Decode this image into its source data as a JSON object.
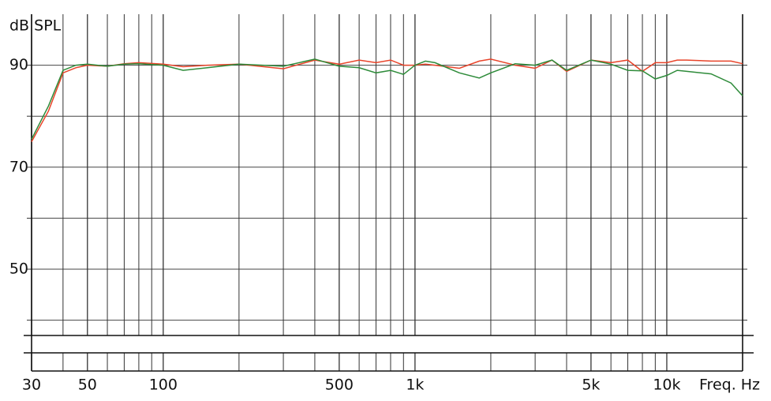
{
  "chart_data": {
    "type": "line",
    "y_label": "dB SPL",
    "x_label": "Freq. Hz",
    "x": [
      30,
      35,
      40,
      45,
      50,
      60,
      70,
      80,
      100,
      120,
      150,
      200,
      300,
      400,
      500,
      600,
      700,
      800,
      900,
      1000,
      1100,
      1200,
      1500,
      1800,
      2000,
      2500,
      3000,
      3500,
      4000,
      5000,
      6000,
      7000,
      8000,
      9000,
      10000,
      11000,
      12000,
      15000,
      18000,
      20000
    ],
    "series": [
      {
        "color": "#e8442a",
        "values": [
          75,
          81,
          88.5,
          89.5,
          90,
          89.8,
          90.3,
          90.5,
          90.2,
          89.7,
          90,
          90.2,
          89.3,
          91,
          90.2,
          91,
          90.5,
          91,
          90,
          90,
          90.2,
          90,
          89.4,
          90.8,
          91.2,
          90,
          89.4,
          91,
          88.8,
          91,
          90.5,
          91,
          88.8,
          90.5,
          90.5,
          91,
          91,
          90.8,
          90.8,
          90.3
        ]
      },
      {
        "color": "#2e8b3a",
        "values": [
          75.5,
          82,
          89,
          90,
          90.2,
          89.8,
          90.2,
          90.3,
          90,
          89,
          89.5,
          90.2,
          89.8,
          91.2,
          89.8,
          89.5,
          88.5,
          89,
          88.2,
          90,
          90.8,
          90.5,
          88.5,
          87.5,
          88.5,
          90.3,
          90,
          91,
          89,
          91,
          90.2,
          89,
          88.9,
          87.3,
          88,
          89,
          88.8,
          88.3,
          86.5,
          84
        ]
      }
    ],
    "xscale": "log",
    "xlim": [
      30,
      20000
    ],
    "xticks": [
      30,
      50,
      100,
      500,
      {
        "value": 1000,
        "label": "1k"
      },
      {
        "value": 5000,
        "label": "5k"
      },
      {
        "value": 10000,
        "label": "10k"
      }
    ],
    "xminor": [
      40,
      60,
      70,
      80,
      90,
      200,
      300,
      400,
      600,
      700,
      800,
      900,
      2000,
      3000,
      4000,
      6000,
      7000,
      8000,
      9000,
      20000
    ],
    "ylim": [
      37,
      100
    ],
    "yticks": [
      50,
      70,
      90
    ],
    "yminor": [
      40,
      60,
      80
    ],
    "grid": true
  }
}
